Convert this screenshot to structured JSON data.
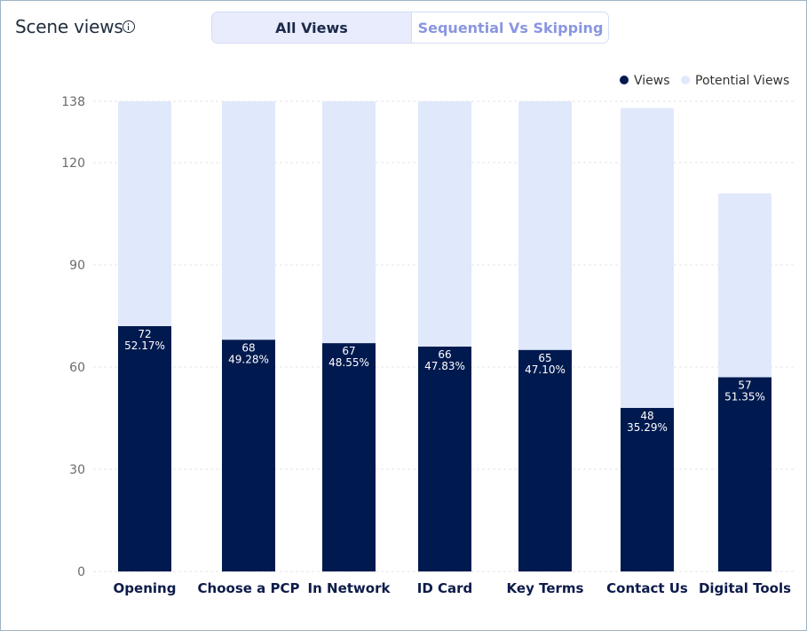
{
  "header": {
    "title": "Scene views",
    "info_icon": "info-circle-icon"
  },
  "toggle": {
    "all_views_label": "All Views",
    "sequential_label": "Sequential Vs Skipping",
    "active": "All Views"
  },
  "colors": {
    "views": "#001a4f",
    "potential_views": "#e0e8fb",
    "grid": "#e6e6e6",
    "axis_text": "#6b6b6b",
    "category_text": "#0d1b4a",
    "toggle_active_bg": "#e8ecfc",
    "toggle_inactive_text": "#8a96e0"
  },
  "chart_data": {
    "type": "bar",
    "stacked": true,
    "categories": [
      "Opening",
      "Choose a PCP",
      "In Network",
      "ID Card",
      "Key Terms",
      "Contact Us",
      "Digital Tools"
    ],
    "series": [
      {
        "name": "Views",
        "values": [
          72,
          68,
          67,
          66,
          65,
          48,
          57
        ],
        "labels": [
          "52.17%",
          "49.28%",
          "48.55%",
          "47.83%",
          "47.10%",
          "35.29%",
          "51.35%"
        ]
      },
      {
        "name": "Potential Views",
        "totals": [
          138,
          138,
          138,
          138,
          138,
          136,
          111
        ]
      }
    ],
    "y_ticks": [
      0,
      30,
      60,
      90,
      120,
      138
    ],
    "ylim": [
      0,
      138
    ],
    "grid": true,
    "legend_position": "top-right"
  }
}
